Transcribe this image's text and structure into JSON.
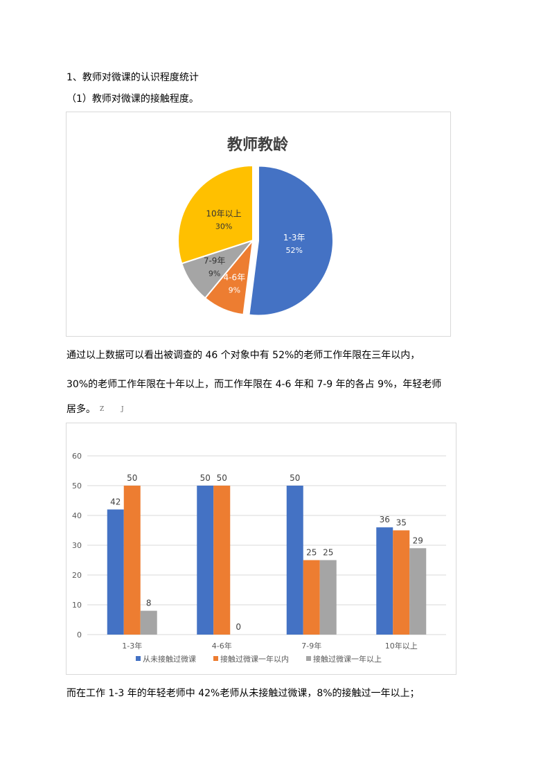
{
  "section_heading": "1、教师对微课的认识程度统计",
  "subheading": "（1）教师对微课的接触程度。",
  "paragraph1_line1": "通过以上数据可以看出被调查的 46 个对象中有 52%的老师工作年限在三年以内，",
  "paragraph1_line2": "30%的老师工作年限在十年以上，而工作年限在 4-6 年和 7-9 年的各占  9%，年轻老师",
  "paragraph1_line3": "居多。",
  "stray_marks": [
    "Z",
    "J"
  ],
  "paragraph2": "而在工作 1-3 年的年轻老师中 42%老师从未接触过微课，8%的接触过一年以上；",
  "chart_data": [
    {
      "type": "pie",
      "title": "教师教龄",
      "slices": [
        {
          "label": "1-3年",
          "value": 52,
          "display": "52%",
          "color": "#4472C4",
          "text_color": "#ffffff"
        },
        {
          "label": "4-6年",
          "value": 9,
          "display": "9%",
          "color": "#ED7D31",
          "text_color": "#ffffff"
        },
        {
          "label": "7-9年",
          "value": 9,
          "display": "9%",
          "color": "#A5A5A5",
          "text_color": "#333333"
        },
        {
          "label": "10年以上",
          "value": 30,
          "display": "30%",
          "color": "#FFC000",
          "text_color": "#333333"
        }
      ],
      "exploded_slice": "1-3年",
      "legend": "none"
    },
    {
      "type": "bar",
      "categories": [
        "1-3年",
        "4-6年",
        "7-9年",
        "10年以上"
      ],
      "series": [
        {
          "name": "从未接触过微课",
          "values": [
            42,
            50,
            50,
            36
          ],
          "color": "#4472C4"
        },
        {
          "name": "接触过微课一年以内",
          "values": [
            50,
            50,
            25,
            35
          ],
          "color": "#ED7D31"
        },
        {
          "name": "接触过微课一年以上",
          "values": [
            8,
            0,
            25,
            29
          ],
          "color": "#A5A5A5"
        }
      ],
      "ylim": [
        0,
        60
      ],
      "yticks": [
        0,
        10,
        20,
        30,
        40,
        50,
        60
      ],
      "grid": true,
      "legend": "bottom",
      "data_labels": true
    }
  ]
}
